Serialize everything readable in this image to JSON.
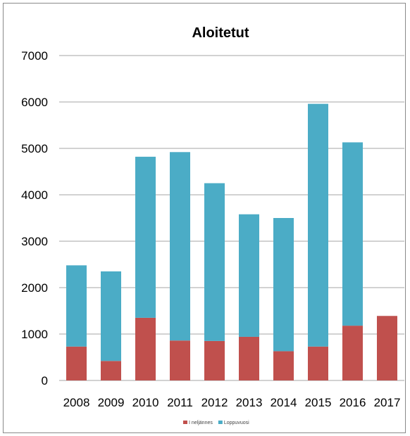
{
  "chart_data": {
    "type": "bar",
    "stacked": true,
    "title": "Aloitetut",
    "categories": [
      "2008",
      "2009",
      "2010",
      "2011",
      "2012",
      "2013",
      "2014",
      "2015",
      "2016",
      "2017"
    ],
    "series": [
      {
        "name": "I neljännes",
        "color": "#c0504d",
        "values": [
          730,
          420,
          1350,
          860,
          850,
          940,
          630,
          730,
          1180,
          1390
        ]
      },
      {
        "name": "Loppuvuosi",
        "color": "#4bacc6",
        "values": [
          1750,
          1930,
          3470,
          4060,
          3400,
          2640,
          2870,
          5230,
          3950,
          0
        ]
      }
    ],
    "ylim": [
      0,
      7000
    ],
    "yticks": [
      0,
      1000,
      2000,
      3000,
      4000,
      5000,
      6000,
      7000
    ],
    "grid": true,
    "legend": "bottom",
    "xlabel": "",
    "ylabel": ""
  }
}
